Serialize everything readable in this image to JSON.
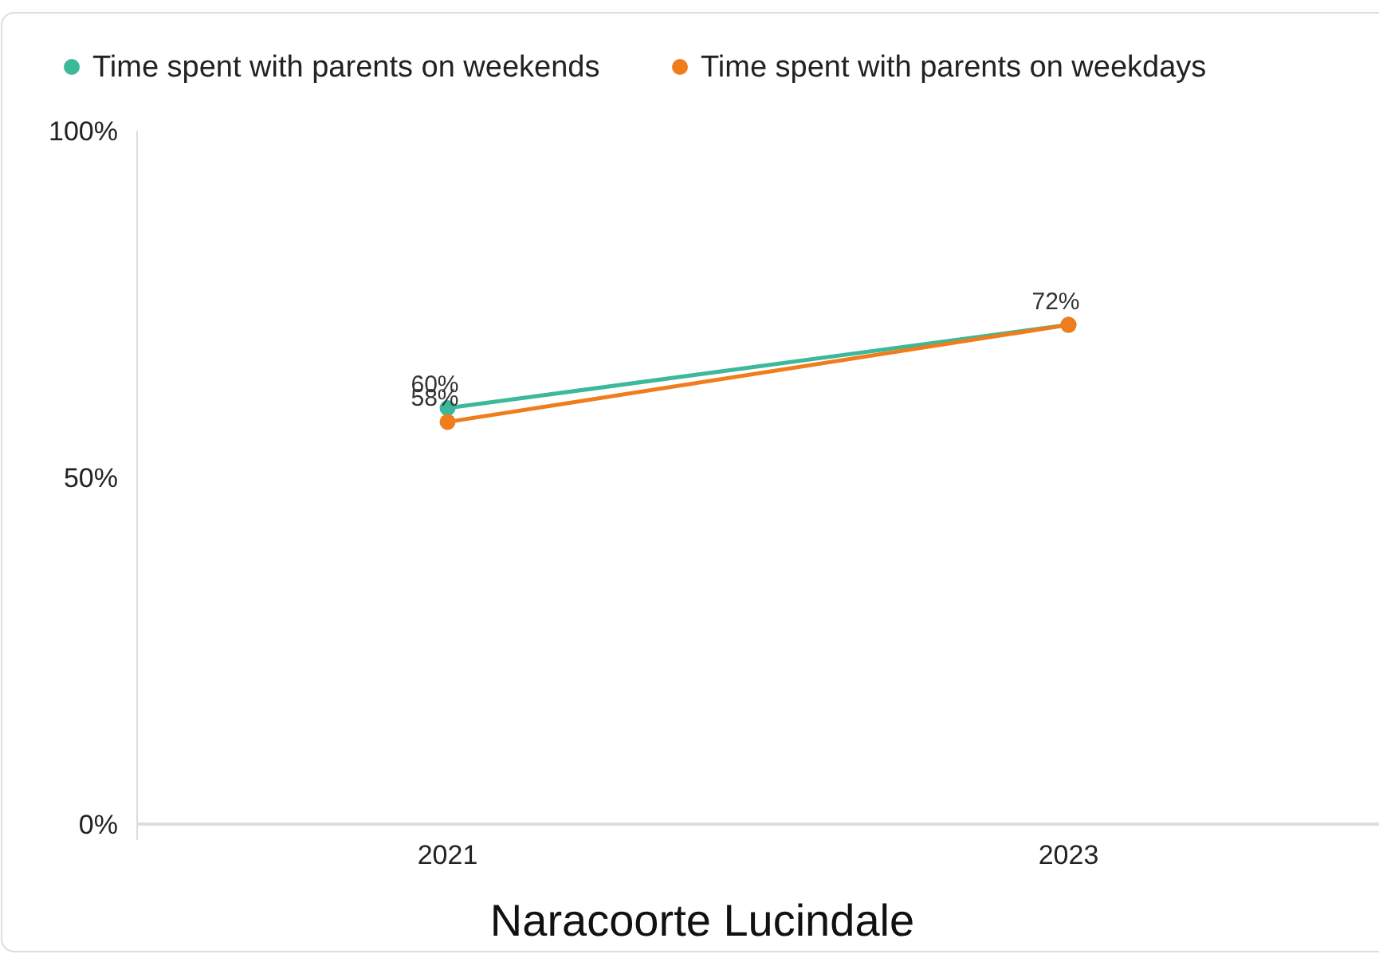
{
  "chart_data": {
    "type": "line",
    "xlabel": "Naracoorte Lucindale",
    "categories": [
      "2021",
      "2023"
    ],
    "series": [
      {
        "name": "Time spent with parents on weekends",
        "color": "#3cb89a",
        "values": [
          60,
          72
        ],
        "value_labels": [
          "60%",
          "72%"
        ]
      },
      {
        "name": "Time spent with parents on weekdays",
        "color": "#f07d1c",
        "values": [
          58,
          72
        ],
        "value_labels": [
          "58%",
          null
        ]
      }
    ],
    "ylim": [
      0,
      100
    ],
    "yticks": [
      {
        "value": 0,
        "label": "0%"
      },
      {
        "value": 50,
        "label": "50%"
      },
      {
        "value": 100,
        "label": "100%"
      }
    ],
    "legend": "top",
    "marker": "circle",
    "line_style": "solid"
  }
}
